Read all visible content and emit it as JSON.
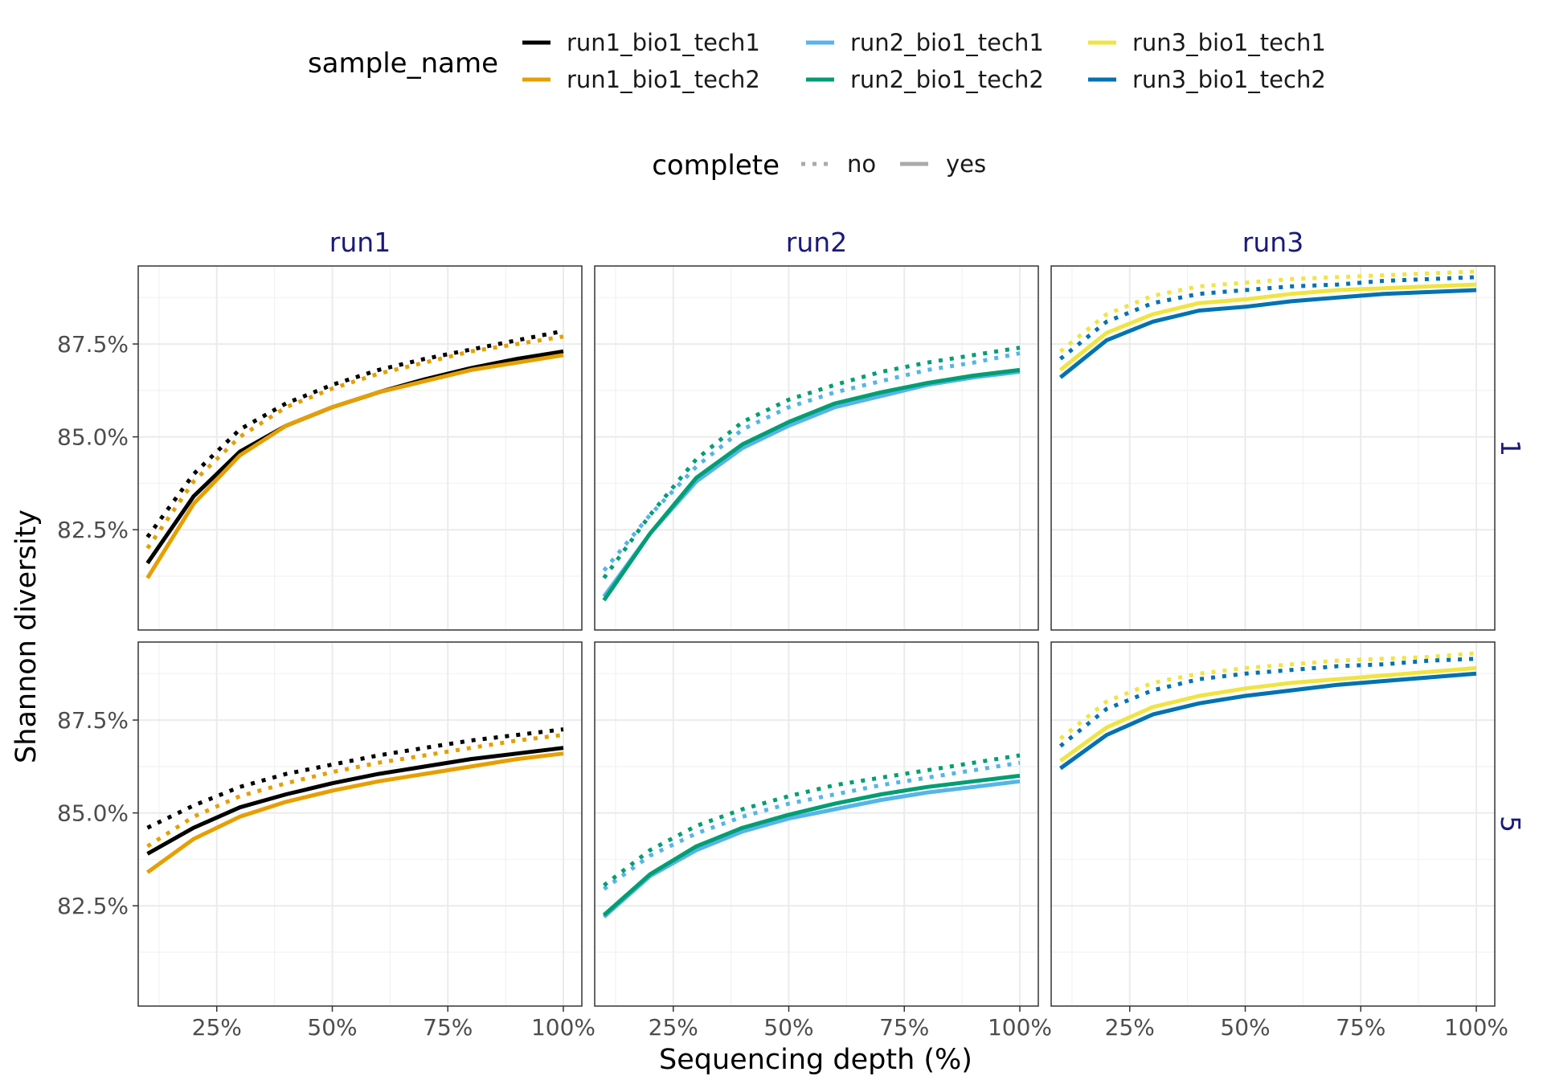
{
  "chart_data": {
    "type": "line",
    "facet_columns": [
      "run1",
      "run2",
      "run3"
    ],
    "facet_rows": [
      "1",
      "5"
    ],
    "xlabel": "Sequencing depth (%)",
    "ylabel": "Shannon diversity",
    "x_ticks": [
      "25%",
      "50%",
      "75%",
      "100%"
    ],
    "x_tick_values": [
      25,
      50,
      75,
      100
    ],
    "y_ticks": [
      "82.5%",
      "85.0%",
      "87.5%"
    ],
    "y_tick_values": [
      82.5,
      85.0,
      87.5
    ],
    "xlim": [
      8,
      104
    ],
    "ylim": [
      79.8,
      89.6
    ],
    "legend": {
      "color_title": "sample_name",
      "color_entries": [
        {
          "name": "run1_bio1_tech1",
          "color": "#000000"
        },
        {
          "name": "run1_bio1_tech2",
          "color": "#E69F00"
        },
        {
          "name": "run2_bio1_tech1",
          "color": "#56B4E9"
        },
        {
          "name": "run2_bio1_tech2",
          "color": "#009E73"
        },
        {
          "name": "run3_bio1_tech1",
          "color": "#F0E442"
        },
        {
          "name": "run3_bio1_tech2",
          "color": "#0072B2"
        }
      ],
      "linetype_title": "complete",
      "linetype_entries": [
        {
          "name": "no",
          "dash": "dotted"
        },
        {
          "name": "yes",
          "dash": "solid"
        }
      ]
    },
    "x": [
      10,
      20,
      30,
      40,
      50,
      60,
      70,
      80,
      90,
      100
    ],
    "panels": [
      {
        "column": "run1",
        "row": "1",
        "series": [
          {
            "name": "run1_bio1_tech1",
            "complete": "yes",
            "values": [
              81.6,
              83.4,
              84.6,
              85.3,
              85.8,
              86.2,
              86.55,
              86.85,
              87.1,
              87.3
            ]
          },
          {
            "name": "run1_bio1_tech2",
            "complete": "yes",
            "values": [
              81.2,
              83.2,
              84.5,
              85.3,
              85.8,
              86.2,
              86.5,
              86.8,
              87.0,
              87.2
            ]
          },
          {
            "name": "run1_bio1_tech1",
            "complete": "no",
            "values": [
              82.3,
              84.0,
              85.2,
              85.9,
              86.4,
              86.8,
              87.1,
              87.35,
              87.6,
              87.85
            ]
          },
          {
            "name": "run1_bio1_tech2",
            "complete": "no",
            "values": [
              82.0,
              83.8,
              85.0,
              85.8,
              86.3,
              86.7,
              87.0,
              87.3,
              87.5,
              87.7
            ]
          }
        ]
      },
      {
        "column": "run2",
        "row": "1",
        "series": [
          {
            "name": "run2_bio1_tech1",
            "complete": "yes",
            "values": [
              80.7,
              82.4,
              83.8,
              84.7,
              85.3,
              85.8,
              86.1,
              86.4,
              86.6,
              86.75
            ]
          },
          {
            "name": "run2_bio1_tech2",
            "complete": "yes",
            "values": [
              80.6,
              82.4,
              83.9,
              84.8,
              85.4,
              85.9,
              86.2,
              86.45,
              86.65,
              86.8
            ]
          },
          {
            "name": "run2_bio1_tech1",
            "complete": "no",
            "values": [
              81.4,
              82.9,
              84.2,
              85.2,
              85.8,
              86.2,
              86.5,
              86.8,
              87.0,
              87.25
            ]
          },
          {
            "name": "run2_bio1_tech2",
            "complete": "no",
            "values": [
              81.2,
              82.9,
              84.4,
              85.4,
              86.0,
              86.4,
              86.75,
              87.0,
              87.2,
              87.4
            ]
          }
        ]
      },
      {
        "column": "run3",
        "row": "1",
        "series": [
          {
            "name": "run3_bio1_tech1",
            "complete": "yes",
            "values": [
              86.8,
              87.8,
              88.3,
              88.6,
              88.7,
              88.85,
              88.95,
              89.0,
              89.05,
              89.1
            ]
          },
          {
            "name": "run3_bio1_tech2",
            "complete": "yes",
            "values": [
              86.6,
              87.6,
              88.1,
              88.4,
              88.5,
              88.65,
              88.75,
              88.85,
              88.9,
              88.95
            ]
          },
          {
            "name": "run3_bio1_tech1",
            "complete": "no",
            "values": [
              87.3,
              88.3,
              88.8,
              89.05,
              89.15,
              89.25,
              89.3,
              89.35,
              89.4,
              89.45
            ]
          },
          {
            "name": "run3_bio1_tech2",
            "complete": "no",
            "values": [
              87.1,
              88.1,
              88.6,
              88.85,
              88.95,
              89.05,
              89.1,
              89.2,
              89.25,
              89.3
            ]
          }
        ]
      },
      {
        "column": "run1",
        "row": "5",
        "series": [
          {
            "name": "run1_bio1_tech1",
            "complete": "yes",
            "values": [
              83.9,
              84.6,
              85.15,
              85.5,
              85.8,
              86.05,
              86.25,
              86.45,
              86.6,
              86.75
            ]
          },
          {
            "name": "run1_bio1_tech2",
            "complete": "yes",
            "values": [
              83.4,
              84.3,
              84.9,
              85.3,
              85.6,
              85.85,
              86.05,
              86.25,
              86.45,
              86.6
            ]
          },
          {
            "name": "run1_bio1_tech1",
            "complete": "no",
            "values": [
              84.6,
              85.2,
              85.7,
              86.05,
              86.3,
              86.55,
              86.75,
              86.95,
              87.1,
              87.25
            ]
          },
          {
            "name": "run1_bio1_tech2",
            "complete": "no",
            "values": [
              84.1,
              84.9,
              85.45,
              85.8,
              86.1,
              86.35,
              86.55,
              86.75,
              86.95,
              87.1
            ]
          }
        ]
      },
      {
        "column": "run2",
        "row": "5",
        "series": [
          {
            "name": "run2_bio1_tech1",
            "complete": "yes",
            "values": [
              82.2,
              83.3,
              84.0,
              84.5,
              84.85,
              85.1,
              85.35,
              85.55,
              85.7,
              85.85
            ]
          },
          {
            "name": "run2_bio1_tech2",
            "complete": "yes",
            "values": [
              82.25,
              83.35,
              84.1,
              84.6,
              84.95,
              85.25,
              85.5,
              85.7,
              85.85,
              86.0
            ]
          },
          {
            "name": "run2_bio1_tech1",
            "complete": "no",
            "values": [
              82.95,
              83.85,
              84.45,
              84.9,
              85.25,
              85.5,
              85.75,
              85.95,
              86.15,
              86.35
            ]
          },
          {
            "name": "run2_bio1_tech2",
            "complete": "no",
            "values": [
              83.05,
              84.0,
              84.65,
              85.1,
              85.45,
              85.75,
              85.95,
              86.15,
              86.35,
              86.55
            ]
          }
        ]
      },
      {
        "column": "run3",
        "row": "5",
        "series": [
          {
            "name": "run3_bio1_tech1",
            "complete": "yes",
            "values": [
              86.4,
              87.3,
              87.85,
              88.15,
              88.35,
              88.5,
              88.6,
              88.7,
              88.8,
              88.9
            ]
          },
          {
            "name": "run3_bio1_tech2",
            "complete": "yes",
            "values": [
              86.2,
              87.1,
              87.65,
              87.95,
              88.15,
              88.3,
              88.45,
              88.55,
              88.65,
              88.75
            ]
          },
          {
            "name": "run3_bio1_tech1",
            "complete": "no",
            "values": [
              87.0,
              88.0,
              88.5,
              88.75,
              88.9,
              89.0,
              89.1,
              89.15,
              89.2,
              89.3
            ]
          },
          {
            "name": "run3_bio1_tech2",
            "complete": "no",
            "values": [
              86.8,
              87.8,
              88.3,
              88.6,
              88.75,
              88.85,
              88.95,
              89.0,
              89.1,
              89.15
            ]
          }
        ]
      }
    ]
  }
}
